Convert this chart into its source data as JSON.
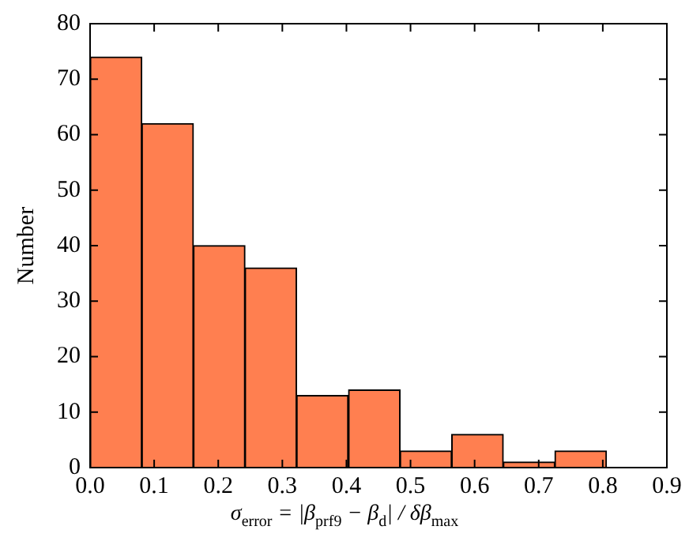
{
  "chart_data": {
    "type": "histogram",
    "xlabel": "σ$_{error}$ = |β$_{prf9}$ − β$_{d}$| / δβ$_{max}$",
    "ylabel": "Number",
    "bins": [
      0,
      0.081,
      0.161,
      0.242,
      0.322,
      0.403,
      0.484,
      0.564,
      0.645,
      0.725,
      0.806
    ],
    "values": [
      74,
      62,
      40,
      36,
      13,
      14,
      3,
      6,
      1,
      3
    ],
    "color": "#ff7f50",
    "xlim": [
      0,
      0.9
    ],
    "ylim": [
      0,
      80
    ],
    "xticks": [
      {
        "value": 0,
        "label": "0.0"
      },
      0.1,
      0.2,
      0.3,
      0.4,
      0.5,
      0.6,
      0.7,
      0.8,
      0.9
    ],
    "yticks": [
      0,
      10,
      20,
      30,
      40,
      50,
      60,
      70,
      80
    ],
    "grid": false,
    "legend": false
  }
}
